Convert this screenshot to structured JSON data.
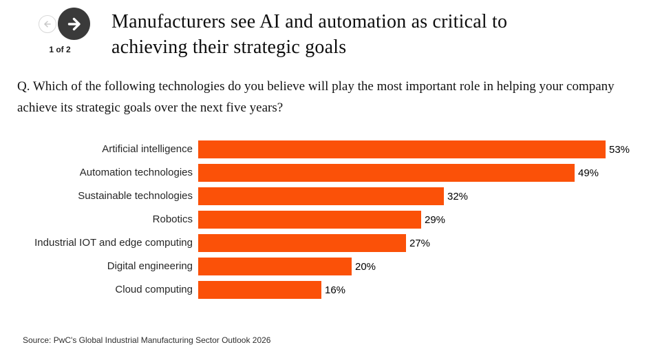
{
  "pagination": {
    "label": "1 of 2",
    "prev_icon": "arrow-left",
    "next_icon": "arrow-right"
  },
  "header": {
    "title": "Manufacturers see AI and automation as critical to achieving their strategic goals"
  },
  "question": {
    "text": "Q. Which of the following technologies do you believe will play the most important role in helping your company achieve its strategic goals over the next five years?"
  },
  "chart_data": {
    "type": "bar",
    "orientation": "horizontal",
    "categories": [
      "Artificial intelligence",
      "Automation technologies",
      "Sustainable technologies",
      "Robotics",
      "Industrial IOT and edge computing",
      "Digital engineering",
      "Cloud computing"
    ],
    "values": [
      53,
      49,
      32,
      29,
      27,
      20,
      16
    ],
    "value_suffix": "%",
    "data_labels": "outside-end",
    "bar_color": "#FB5108",
    "xlim": [
      0,
      59
    ],
    "grid": false,
    "legend": false
  },
  "footer": {
    "source": "Source: PwC's Global Industrial Manufacturing Sector Outlook 2026"
  },
  "colors": {
    "accent_orange": "#FB5108",
    "nav_circle_dark": "#3A3A3A",
    "nav_circle_disabled_border": "#D8D8D8",
    "nav_arrow_disabled": "#C8C8C8",
    "text": "#000000"
  }
}
